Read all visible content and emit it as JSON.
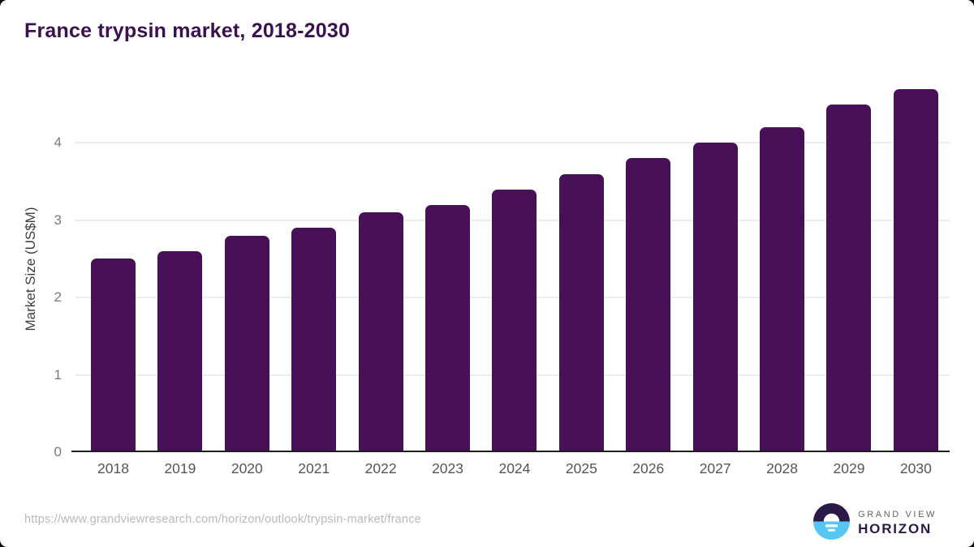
{
  "title": "France trypsin market, 2018-2030",
  "chart_data": {
    "type": "bar",
    "categories": [
      "2018",
      "2019",
      "2020",
      "2021",
      "2022",
      "2023",
      "2024",
      "2025",
      "2026",
      "2027",
      "2028",
      "2029",
      "2030"
    ],
    "values": [
      2.5,
      2.6,
      2.8,
      2.9,
      3.1,
      3.2,
      3.4,
      3.6,
      3.8,
      4.0,
      4.2,
      4.5,
      4.7
    ],
    "title": "France trypsin market, 2018-2030",
    "xlabel": "",
    "ylabel": "Market Size (US$M)",
    "yticks": [
      0,
      1,
      2,
      3,
      4
    ],
    "ylim": [
      0,
      4.8
    ],
    "grid": "horizontal-only",
    "legend": "none"
  },
  "footer": {
    "source_url": "https://www.grandviewresearch.com/horizon/outlook/trypsin-market/france",
    "logo": {
      "line1": "GRAND VIEW",
      "line2": "HORIZON",
      "icon": "horizon-sun-circle"
    }
  },
  "colors": {
    "accent": "#471057",
    "title_purple": "#3a1150",
    "logo_dark": "#2b1a47",
    "logo_blue": "#56c7f3",
    "gridline": "#ededed",
    "axis_line": "#1f1f1f",
    "tick_label": "#7a7a7a",
    "year_label": "#555555",
    "url_gray": "#b9b9b9"
  }
}
